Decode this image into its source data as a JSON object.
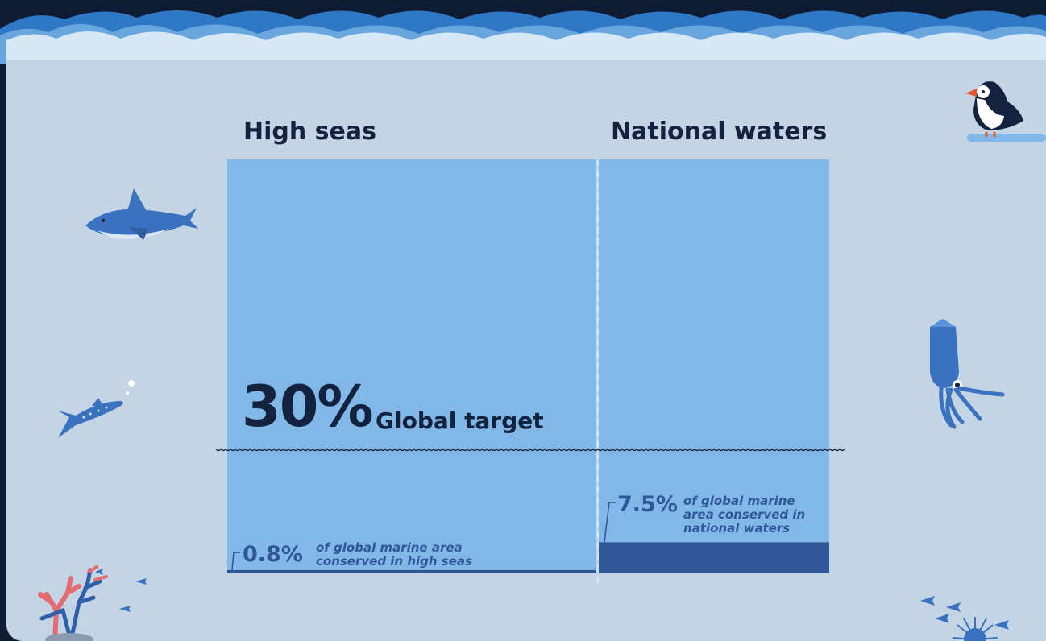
{
  "chart_data": {
    "type": "bar",
    "categories": [
      "High seas",
      "National waters"
    ],
    "values": [
      0.8,
      7.5
    ],
    "target": {
      "value": 30,
      "label": "Global target",
      "display": "30%"
    },
    "value_labels": [
      "0.8%",
      "7.5%"
    ],
    "descriptions": [
      [
        "of global marine area",
        "conserved in high seas"
      ],
      [
        "of global marine",
        "area conserved in",
        "national waters"
      ]
    ],
    "unit": "%",
    "colors": {
      "background_area": "#81b8e7",
      "conserved_bar": "#2f5697",
      "text": "#13233f",
      "panel": "#c3d5e5",
      "frame": "#0d1b33"
    }
  },
  "icons": [
    "wave-border",
    "shark-icon",
    "whale-shark-icon",
    "puffin-icon",
    "squid-icon",
    "coral-icon",
    "fish-school-icon",
    "sea-urchin-icon"
  ]
}
